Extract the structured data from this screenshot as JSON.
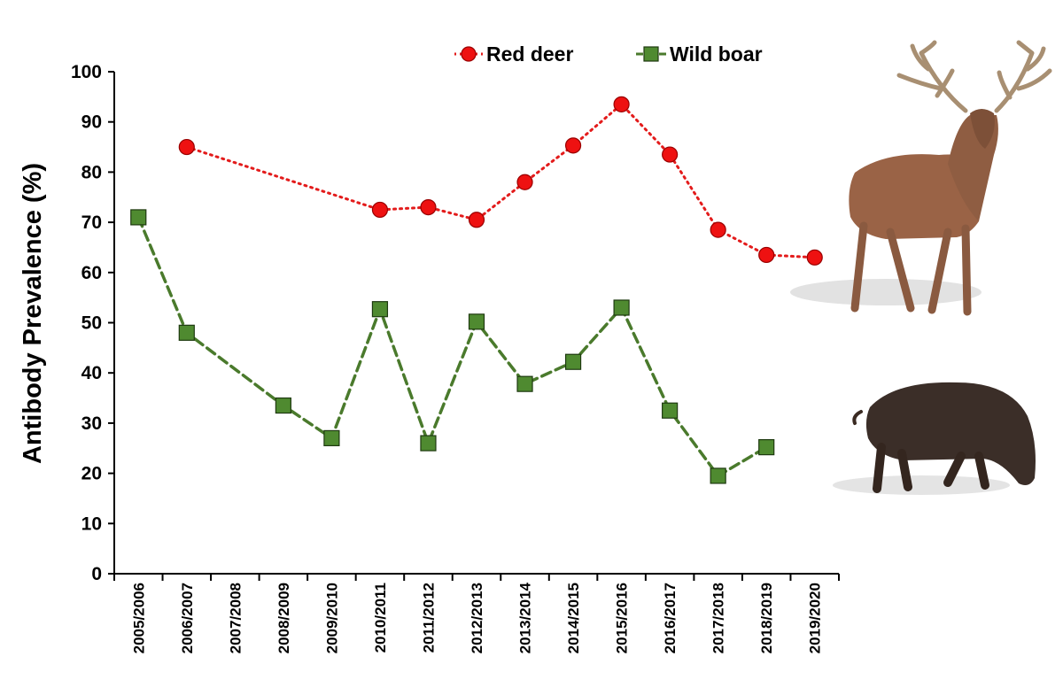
{
  "chart_data": {
    "type": "line",
    "xlabel": "",
    "ylabel": "Antibody Prevalence (%)",
    "ylim": [
      0,
      100
    ],
    "yticks": [
      0,
      10,
      20,
      30,
      40,
      50,
      60,
      70,
      80,
      90,
      100
    ],
    "categories": [
      "2005/2006",
      "2006/2007",
      "2007/2008",
      "2008/2009",
      "2009/2010",
      "2010/2011",
      "2011/2012",
      "2012/2013",
      "2013/2014",
      "2014/2015",
      "2015/2016",
      "2016/2017",
      "2017/2018",
      "2018/2019",
      "2019/2020"
    ],
    "grid": false,
    "legend_position": "top",
    "series": [
      {
        "name": "Red deer",
        "color": "#e31b1b",
        "marker": "circle",
        "line_style": "dotted",
        "values": [
          null,
          85,
          null,
          null,
          null,
          72.5,
          73,
          70.5,
          78,
          85.3,
          93.5,
          83.5,
          68.5,
          63.5,
          63
        ]
      },
      {
        "name": "Wild boar",
        "color": "#4a7a2c",
        "marker": "square",
        "line_style": "dashed",
        "values": [
          71,
          48,
          null,
          33.5,
          27,
          52.7,
          26,
          50.2,
          37.8,
          42.2,
          53,
          32.5,
          19.5,
          25.2,
          null
        ]
      }
    ]
  },
  "illustrations": {
    "deer": "red-deer-stag-photo",
    "boar": "wild-boar-photo"
  }
}
